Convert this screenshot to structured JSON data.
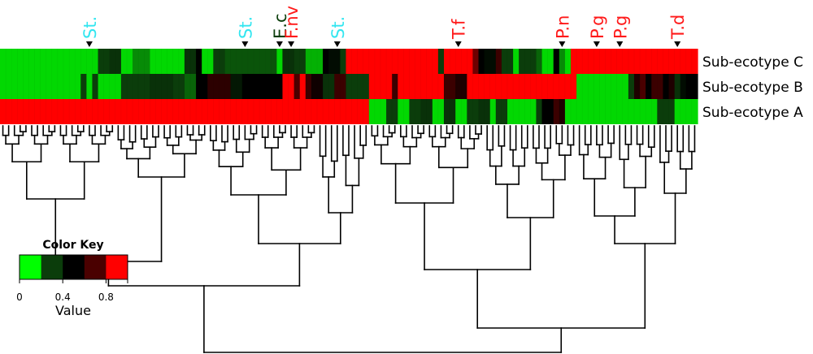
{
  "chart_data": {
    "type": "heatmap",
    "row_labels": [
      "Sub-ecotype C",
      "Sub-ecotype B",
      "Sub-ecotype A"
    ],
    "column_count": 121,
    "column_markers": [
      {
        "label": "St.",
        "column": 15,
        "color": "#33e6f0"
      },
      {
        "label": "St.",
        "column": 42,
        "color": "#33e6f0"
      },
      {
        "label": "E.c",
        "column": 48,
        "color": "#0a3d0a"
      },
      {
        "label": "F.nv",
        "column": 50,
        "color": "#ff1a1a"
      },
      {
        "label": "St.",
        "column": 58,
        "color": "#33e6f0"
      },
      {
        "label": "T.f",
        "column": 79,
        "color": "#ff1a1a"
      },
      {
        "label": "P.n",
        "column": 97,
        "color": "#ff1a1a"
      },
      {
        "label": "P.g",
        "column": 103,
        "color": "#ff1a1a"
      },
      {
        "label": "P.g",
        "column": 107,
        "color": "#ff1a1a"
      },
      {
        "label": "T.d",
        "column": 117,
        "color": "#ff1a1a"
      }
    ],
    "color_scale": {
      "min": 0,
      "max": 1,
      "stops": [
        "#00ff00",
        "#0b3d0b",
        "#000000",
        "#4a0000",
        "#ff0000"
      ]
    },
    "rows": {
      "Sub-ecotype C": [
        {
          "from": 0,
          "to": 17,
          "v": 0.05
        },
        {
          "from": 17,
          "to": 19,
          "v": 0.25
        },
        {
          "from": 19,
          "to": 21,
          "v": 0.3
        },
        {
          "from": 21,
          "to": 23,
          "v": 0.05
        },
        {
          "from": 23,
          "to": 26,
          "v": 0.15
        },
        {
          "from": 26,
          "to": 29,
          "v": 0.05
        },
        {
          "from": 29,
          "to": 32,
          "v": 0.05
        },
        {
          "from": 32,
          "to": 34,
          "v": 0.3
        },
        {
          "from": 34,
          "to": 35,
          "v": 0.5
        },
        {
          "from": 35,
          "to": 37,
          "v": 0.05
        },
        {
          "from": 37,
          "to": 39,
          "v": 0.25
        },
        {
          "from": 39,
          "to": 44,
          "v": 0.22
        },
        {
          "from": 44,
          "to": 48,
          "v": 0.22
        },
        {
          "from": 48,
          "to": 49,
          "v": 0.05
        },
        {
          "from": 49,
          "to": 51,
          "v": 0.3
        },
        {
          "from": 51,
          "to": 53,
          "v": 0.25
        },
        {
          "from": 53,
          "to": 56,
          "v": 0.1
        },
        {
          "from": 56,
          "to": 57,
          "v": 0.5
        },
        {
          "from": 57,
          "to": 59,
          "v": 0.45
        },
        {
          "from": 59,
          "to": 60,
          "v": 0.25
        },
        {
          "from": 60,
          "to": 76,
          "v": 1.0
        },
        {
          "from": 76,
          "to": 77,
          "v": 0.25
        },
        {
          "from": 77,
          "to": 78,
          "v": 1.0
        },
        {
          "from": 78,
          "to": 82,
          "v": 1.0
        },
        {
          "from": 82,
          "to": 83,
          "v": 0.8
        },
        {
          "from": 83,
          "to": 84,
          "v": 0.5
        },
        {
          "from": 84,
          "to": 86,
          "v": 0.45
        },
        {
          "from": 86,
          "to": 87,
          "v": 0.7
        },
        {
          "from": 87,
          "to": 89,
          "v": 0.25
        },
        {
          "from": 89,
          "to": 90,
          "v": 0.05
        },
        {
          "from": 90,
          "to": 93,
          "v": 0.25
        },
        {
          "from": 93,
          "to": 94,
          "v": 0.2
        },
        {
          "from": 94,
          "to": 96,
          "v": 0.05
        },
        {
          "from": 96,
          "to": 97,
          "v": 0.5
        },
        {
          "from": 97,
          "to": 98,
          "v": 0.15
        },
        {
          "from": 98,
          "to": 99,
          "v": 0.05
        },
        {
          "from": 99,
          "to": 121,
          "v": 1.0
        }
      ],
      "Sub-ecotype B": [
        {
          "from": 0,
          "to": 14,
          "v": 0.05
        },
        {
          "from": 14,
          "to": 15,
          "v": 0.25
        },
        {
          "from": 15,
          "to": 16,
          "v": 0.05
        },
        {
          "from": 16,
          "to": 17,
          "v": 0.25
        },
        {
          "from": 17,
          "to": 21,
          "v": 0.05
        },
        {
          "from": 21,
          "to": 26,
          "v": 0.25
        },
        {
          "from": 26,
          "to": 30,
          "v": 0.3
        },
        {
          "from": 30,
          "to": 32,
          "v": 0.25
        },
        {
          "from": 32,
          "to": 34,
          "v": 0.2
        },
        {
          "from": 34,
          "to": 36,
          "v": 0.5
        },
        {
          "from": 36,
          "to": 40,
          "v": 0.65
        },
        {
          "from": 40,
          "to": 42,
          "v": 0.4
        },
        {
          "from": 42,
          "to": 45,
          "v": 0.5
        },
        {
          "from": 45,
          "to": 49,
          "v": 0.5
        },
        {
          "from": 49,
          "to": 51,
          "v": 1.0
        },
        {
          "from": 51,
          "to": 52,
          "v": 0.75
        },
        {
          "from": 52,
          "to": 53,
          "v": 1.0
        },
        {
          "from": 53,
          "to": 54,
          "v": 0.7
        },
        {
          "from": 54,
          "to": 56,
          "v": 0.55
        },
        {
          "from": 56,
          "to": 58,
          "v": 0.3
        },
        {
          "from": 58,
          "to": 60,
          "v": 0.7
        },
        {
          "from": 60,
          "to": 64,
          "v": 0.25
        },
        {
          "from": 64,
          "to": 68,
          "v": 1.0
        },
        {
          "from": 68,
          "to": 69,
          "v": 0.7
        },
        {
          "from": 69,
          "to": 77,
          "v": 1.0
        },
        {
          "from": 77,
          "to": 79,
          "v": 0.7
        },
        {
          "from": 79,
          "to": 81,
          "v": 0.6
        },
        {
          "from": 81,
          "to": 100,
          "v": 1.0
        },
        {
          "from": 100,
          "to": 109,
          "v": 0.05
        },
        {
          "from": 109,
          "to": 110,
          "v": 0.25
        },
        {
          "from": 110,
          "to": 111,
          "v": 0.6
        },
        {
          "from": 111,
          "to": 112,
          "v": 0.75
        },
        {
          "from": 112,
          "to": 113,
          "v": 0.5
        },
        {
          "from": 113,
          "to": 115,
          "v": 0.7
        },
        {
          "from": 115,
          "to": 116,
          "v": 0.5
        },
        {
          "from": 116,
          "to": 117,
          "v": 0.6
        },
        {
          "from": 117,
          "to": 118,
          "v": 0.3
        },
        {
          "from": 118,
          "to": 119,
          "v": 0.45
        },
        {
          "from": 119,
          "to": 121,
          "v": 0.5
        }
      ],
      "Sub-ecotype A": [
        {
          "from": 0,
          "to": 64,
          "v": 1.0
        },
        {
          "from": 64,
          "to": 67,
          "v": 0.05
        },
        {
          "from": 67,
          "to": 69,
          "v": 0.25
        },
        {
          "from": 69,
          "to": 71,
          "v": 0.05
        },
        {
          "from": 71,
          "to": 73,
          "v": 0.25
        },
        {
          "from": 73,
          "to": 75,
          "v": 0.3
        },
        {
          "from": 75,
          "to": 77,
          "v": 0.05
        },
        {
          "from": 77,
          "to": 79,
          "v": 0.3
        },
        {
          "from": 79,
          "to": 81,
          "v": 0.05
        },
        {
          "from": 81,
          "to": 83,
          "v": 0.25
        },
        {
          "from": 83,
          "to": 85,
          "v": 0.3
        },
        {
          "from": 85,
          "to": 86,
          "v": 0.05
        },
        {
          "from": 86,
          "to": 88,
          "v": 0.25
        },
        {
          "from": 88,
          "to": 91,
          "v": 0.05
        },
        {
          "from": 91,
          "to": 93,
          "v": 0.05
        },
        {
          "from": 93,
          "to": 94,
          "v": 0.25
        },
        {
          "from": 94,
          "to": 96,
          "v": 0.5
        },
        {
          "from": 96,
          "to": 97,
          "v": 0.7
        },
        {
          "from": 97,
          "to": 98,
          "v": 0.6
        },
        {
          "from": 98,
          "to": 100,
          "v": 0.05
        },
        {
          "from": 100,
          "to": 114,
          "v": 0.05
        },
        {
          "from": 114,
          "to": 117,
          "v": 0.25
        },
        {
          "from": 117,
          "to": 121,
          "v": 0.05
        }
      ]
    },
    "color_key": {
      "title": "Color Key",
      "ticks": [
        "0",
        "0.4",
        "0.8"
      ],
      "xlabel": "Value"
    }
  }
}
